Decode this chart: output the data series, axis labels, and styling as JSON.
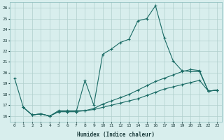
{
  "xlabel": "Humidex (Indice chaleur)",
  "xlim": [
    -0.5,
    23.5
  ],
  "ylim": [
    15.5,
    26.5
  ],
  "yticks": [
    16,
    17,
    18,
    19,
    20,
    21,
    22,
    23,
    24,
    25,
    26
  ],
  "xticks": [
    0,
    1,
    2,
    3,
    4,
    5,
    6,
    7,
    8,
    9,
    10,
    11,
    12,
    13,
    14,
    15,
    16,
    17,
    18,
    19,
    20,
    21,
    22,
    23
  ],
  "bg_color": "#d8eeed",
  "grid_color": "#b0cfcc",
  "line_color": "#1a6b65",
  "line1": {
    "x": [
      0,
      1,
      2,
      3,
      4,
      5,
      6,
      7,
      8,
      9,
      10,
      11,
      12,
      13,
      14,
      15,
      16,
      17,
      18,
      19,
      20,
      21,
      22,
      23
    ],
    "y": [
      19.5,
      16.8,
      16.1,
      16.2,
      16.0,
      16.4,
      16.4,
      16.4,
      19.3,
      17.0,
      21.7,
      22.2,
      22.8,
      23.1,
      24.8,
      25.0,
      26.2,
      23.2,
      21.1,
      20.2,
      20.1,
      20.1,
      18.3,
      18.4
    ]
  },
  "line2": {
    "x": [
      1,
      2,
      3,
      4,
      5,
      6,
      7,
      8,
      9,
      10,
      11,
      12,
      13,
      14,
      15,
      16,
      17,
      18,
      19,
      20,
      21,
      22,
      23
    ],
    "y": [
      16.8,
      16.1,
      16.2,
      16.0,
      16.5,
      16.5,
      16.5,
      16.5,
      16.7,
      17.1,
      17.4,
      17.7,
      18.0,
      18.4,
      18.8,
      19.2,
      19.5,
      19.8,
      20.1,
      20.3,
      20.2,
      18.3,
      18.4
    ]
  },
  "line3": {
    "x": [
      1,
      2,
      3,
      4,
      5,
      6,
      7,
      8,
      9,
      10,
      11,
      12,
      13,
      14,
      15,
      16,
      17,
      18,
      19,
      20,
      21,
      22,
      23
    ],
    "y": [
      16.8,
      16.1,
      16.2,
      16.0,
      16.4,
      16.4,
      16.4,
      16.5,
      16.6,
      16.8,
      17.0,
      17.2,
      17.4,
      17.6,
      17.9,
      18.2,
      18.5,
      18.7,
      18.9,
      19.1,
      19.3,
      18.3,
      18.4
    ]
  }
}
